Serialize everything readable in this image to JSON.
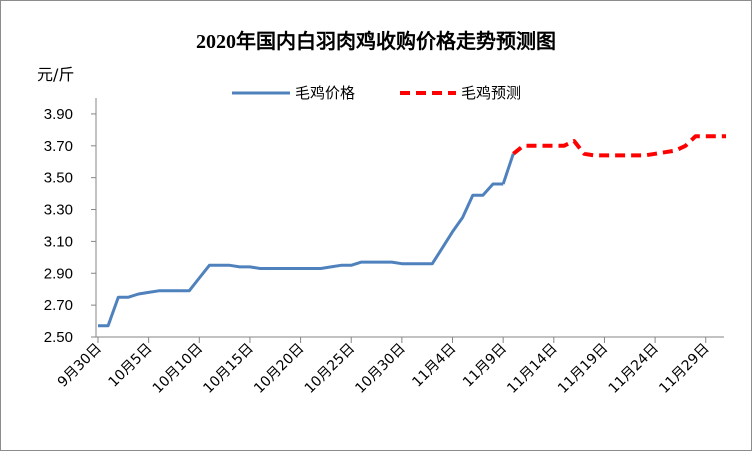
{
  "chart_data": {
    "type": "line",
    "title": "2020年国内白羽肉鸡收购价格走势预测图",
    "ylabel": "元/斤",
    "xlabel": "",
    "ylim": [
      2.5,
      4.0
    ],
    "yticks": [
      "2.50",
      "2.70",
      "2.90",
      "3.10",
      "3.30",
      "3.50",
      "3.70",
      "3.90"
    ],
    "x_start_label": "9月30日",
    "x_tick_every_days": 5,
    "x_tick_labels": [
      "9月30日",
      "10月5日",
      "10月10日",
      "10月15日",
      "10月20日",
      "10月25日",
      "10月30日",
      "11月4日",
      "11月9日",
      "11月14日",
      "11月19日",
      "11月24日",
      "11月29日"
    ],
    "legend_position": "top",
    "series": [
      {
        "name": "毛鸡价格",
        "style": "solid",
        "color": "#4f81bd",
        "x": [
          "9月30日",
          "10月1日",
          "10月2日",
          "10月3日",
          "10月4日",
          "10月5日",
          "10月6日",
          "10月7日",
          "10月8日",
          "10月9日",
          "10月10日",
          "10月11日",
          "10月12日",
          "10月13日",
          "10月14日",
          "10月15日",
          "10月16日",
          "10月17日",
          "10月18日",
          "10月19日",
          "10月20日",
          "10月21日",
          "10月22日",
          "10月23日",
          "10月24日",
          "10月25日",
          "10月26日",
          "10月27日",
          "10月28日",
          "10月29日",
          "10月30日",
          "10月31日",
          "11月1日",
          "11月2日",
          "11月3日",
          "11月4日",
          "11月5日",
          "11月6日",
          "11月7日",
          "11月8日",
          "11月9日"
        ],
        "values": [
          2.57,
          2.57,
          2.75,
          2.75,
          2.77,
          2.78,
          2.79,
          2.79,
          2.79,
          2.79,
          2.87,
          2.95,
          2.95,
          2.95,
          2.94,
          2.94,
          2.93,
          2.93,
          2.93,
          2.93,
          2.93,
          2.93,
          2.93,
          2.94,
          2.95,
          2.95,
          2.97,
          2.97,
          2.97,
          2.97,
          2.96,
          2.96,
          2.96,
          2.96,
          3.06,
          3.16,
          3.25,
          3.39,
          3.39,
          3.46,
          3.46
        ]
      },
      {
        "name": "毛鸡预测",
        "style": "dashed",
        "color": "#ff0000",
        "x": [
          "11月10日",
          "11月11日",
          "11月12日",
          "11月13日",
          "11月14日",
          "11月15日",
          "11月16日",
          "11月17日",
          "11月18日",
          "11月19日",
          "11月20日",
          "11月21日",
          "11月22日",
          "11月23日",
          "11月24日",
          "11月25日",
          "11月26日",
          "11月27日",
          "11月28日",
          "11月29日",
          "11月30日",
          "12月1日"
        ],
        "values": [
          3.65,
          3.7,
          3.7,
          3.7,
          3.7,
          3.7,
          3.73,
          3.65,
          3.64,
          3.64,
          3.64,
          3.64,
          3.64,
          3.64,
          3.65,
          3.66,
          3.67,
          3.7,
          3.76,
          3.76,
          3.76,
          3.76
        ]
      }
    ]
  }
}
